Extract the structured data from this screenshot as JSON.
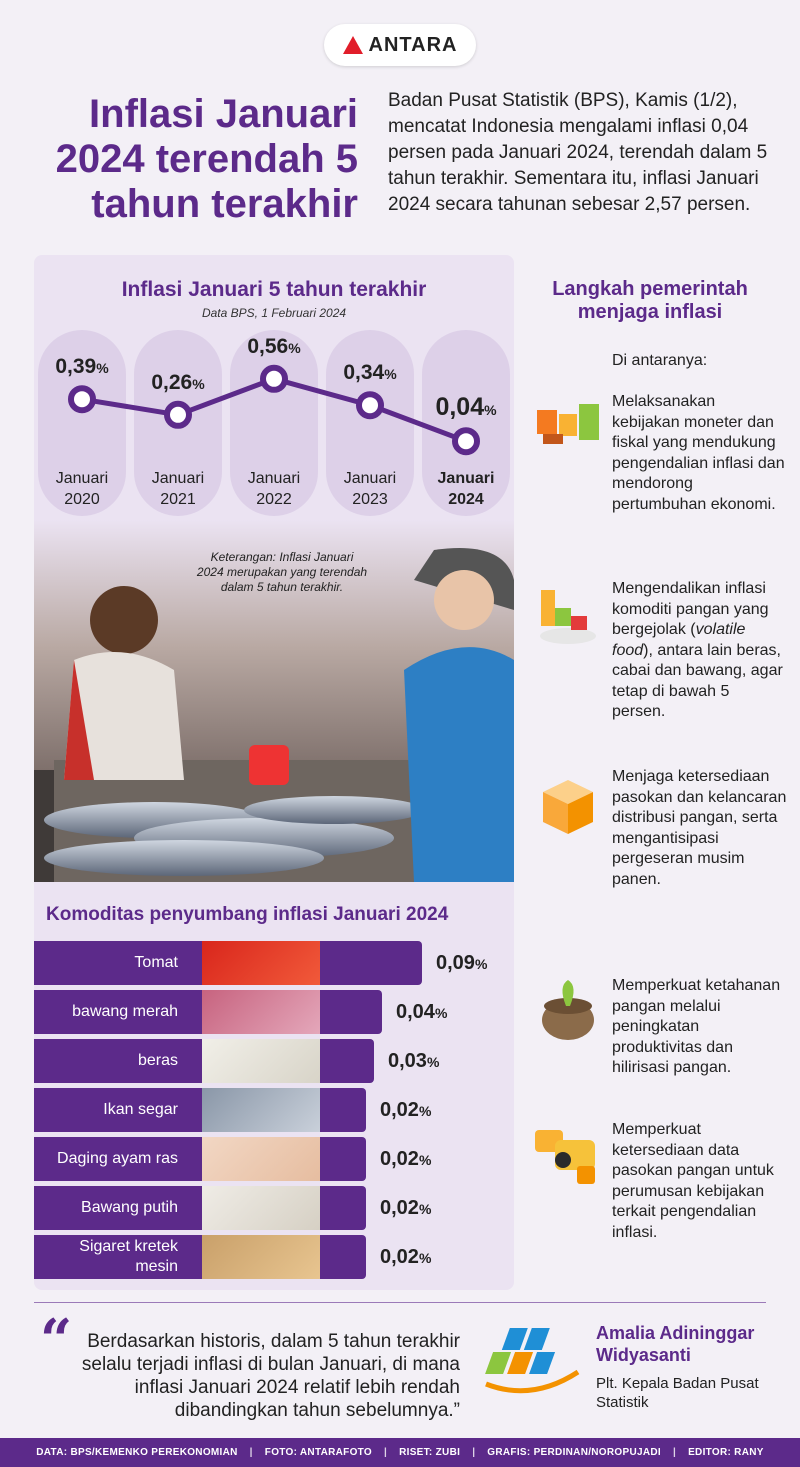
{
  "logo": {
    "text": "ANTARA"
  },
  "title": "Inflasi Januari 2024 terendah 5 tahun terakhir",
  "intro": "Badan Pusat Statistik (BPS), Kamis (1/2), mencatat Indonesia mengalami inflasi 0,04 persen pada Januari 2024, terendah dalam 5 tahun terakhir. Sementara itu, inflasi Januari 2024 secara tahunan sebesar 2,57 persen.",
  "chart": {
    "title": "Inflasi Januari 5 tahun terakhir",
    "subtitle": "Data BPS, 1 Februari 2024",
    "pct_sign": "%",
    "points": [
      {
        "value_text": "0,39",
        "month": "Januari",
        "year": "2020"
      },
      {
        "value_text": "0,26",
        "month": "Januari",
        "year": "2021"
      },
      {
        "value_text": "0,56",
        "month": "Januari",
        "year": "2022"
      },
      {
        "value_text": "0,34",
        "month": "Januari",
        "year": "2023"
      },
      {
        "value_text": "0,04",
        "month": "Januari",
        "year": "2024"
      }
    ]
  },
  "chart_data": {
    "type": "line",
    "title": "Inflasi Januari 5 tahun terakhir",
    "subtitle": "Data BPS, 1 Februari 2024",
    "categories": [
      "Januari 2020",
      "Januari 2021",
      "Januari 2022",
      "Januari 2023",
      "Januari 2024"
    ],
    "values": [
      0.39,
      0.26,
      0.56,
      0.34,
      0.04
    ],
    "unit": "%",
    "ylim": [
      0,
      0.6
    ],
    "grid": false
  },
  "photo_caption": "Keterangan: Inflasi Januari 2024 merupakan yang terendah dalam 5 tahun terakhir.",
  "komoditas": {
    "title": "Komoditas penyumbang inflasi Januari 2024",
    "pct_sign": "%",
    "items": [
      {
        "name": "Tomat",
        "value_text": "0,09",
        "value": 0.09
      },
      {
        "name": "bawang merah",
        "value_text": "0,04",
        "value": 0.04
      },
      {
        "name": "beras",
        "value_text": "0,03",
        "value": 0.03
      },
      {
        "name": "Ikan segar",
        "value_text": "0,02",
        "value": 0.02
      },
      {
        "name": "Daging ayam ras",
        "value_text": "0,02",
        "value": 0.02
      },
      {
        "name": "Bawang putih",
        "value_text": "0,02",
        "value": 0.02
      },
      {
        "name": "Sigaret kretek mesin",
        "value_text": "0,02",
        "value": 0.02
      }
    ]
  },
  "steps": {
    "title": "Langkah pemerintah menjaga inflasi",
    "intro": "Di antaranya:",
    "items": [
      {
        "text": "Melaksanakan kebijakan moneter dan fiskal yang mendukung pengendalian inflasi dan mendorong pertumbuhan ekonomi."
      },
      {
        "text_a": "Mengendalikan inflasi komoditi pangan yang bergejolak (",
        "text_em": "volatile food",
        "text_b": "), antara lain beras, cabai dan bawang, agar tetap di bawah 5 persen."
      },
      {
        "text": "Menjaga ketersediaan pasokan dan kelancaran distribusi pangan, serta mengantisipasi pergeseran musim panen."
      },
      {
        "text": "Memperkuat ketahanan pangan melalui peningkatan produktivitas dan hilirisasi pangan."
      },
      {
        "text": "Memperkuat ketersediaan data pasokan pangan untuk perumusan kebijakan terkait pengendalian inflasi."
      }
    ]
  },
  "quote": {
    "mark": "“",
    "text": "Berdasarkan historis, dalam 5 tahun terakhir selalu terjadi inflasi di bulan Januari, di mana inflasi Januari 2024 relatif lebih rendah dibandingkan tahun sebelumnya.”",
    "name": "Amalia Adininggar Widyasanti",
    "role": "Plt. Kepala Badan Pusat Statistik"
  },
  "footer": {
    "data": "DATA: BPS/KEMENKO PEREKONOMIAN",
    "foto": "FOTO: ANTARAFOTO",
    "riset": "RISET: ZUBI",
    "grafis": "GRAFIS: PERDINAN/NOROPUJADI",
    "editor": "EDITOR: RANY",
    "sep": "|"
  }
}
